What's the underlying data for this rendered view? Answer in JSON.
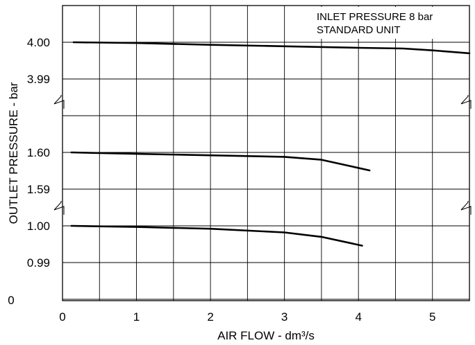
{
  "chart_data": {
    "type": "line",
    "xlabel": "AIR FLOW - dm³/s",
    "ylabel": "OUTLET PRESSURE - bar",
    "xlim": [
      0,
      5.5
    ],
    "x_ticks": [
      "0",
      "1",
      "2",
      "3",
      "4",
      "5"
    ],
    "annotation": [
      "INLET PRESSURE 8 bar",
      "STANDARD UNIT"
    ],
    "axis_breaks": "broken y-axis between 3.99 and 1.60 and between 1.59 and 1.00",
    "grid": true,
    "y_panels": [
      {
        "top": 4.0,
        "bottom": 3.99,
        "ticks": [
          "4.00",
          "3.99"
        ]
      },
      {
        "top": 1.6,
        "bottom": 1.59,
        "ticks": [
          "1.60",
          "1.59"
        ]
      },
      {
        "top": 1.0,
        "bottom": 0.99,
        "ticks": [
          "1.00",
          "0.99"
        ],
        "floor_label": "0"
      }
    ],
    "series": [
      {
        "panel": 0,
        "x": [
          0.15,
          1,
          2,
          3,
          4,
          4.6,
          5,
          5.5
        ],
        "y": [
          4.0,
          3.9998,
          3.9993,
          3.9989,
          3.9985,
          3.9983,
          3.9978,
          3.997
        ]
      },
      {
        "panel": 1,
        "x": [
          0.12,
          1,
          2,
          3,
          3.5,
          4.15
        ],
        "y": [
          1.6,
          1.5996,
          1.5992,
          1.5988,
          1.598,
          1.5951
        ]
      },
      {
        "panel": 2,
        "x": [
          0.12,
          1,
          2,
          3,
          3.5,
          4.05
        ],
        "y": [
          1.0,
          0.9997,
          0.9992,
          0.9982,
          0.997,
          0.9946
        ]
      }
    ]
  }
}
